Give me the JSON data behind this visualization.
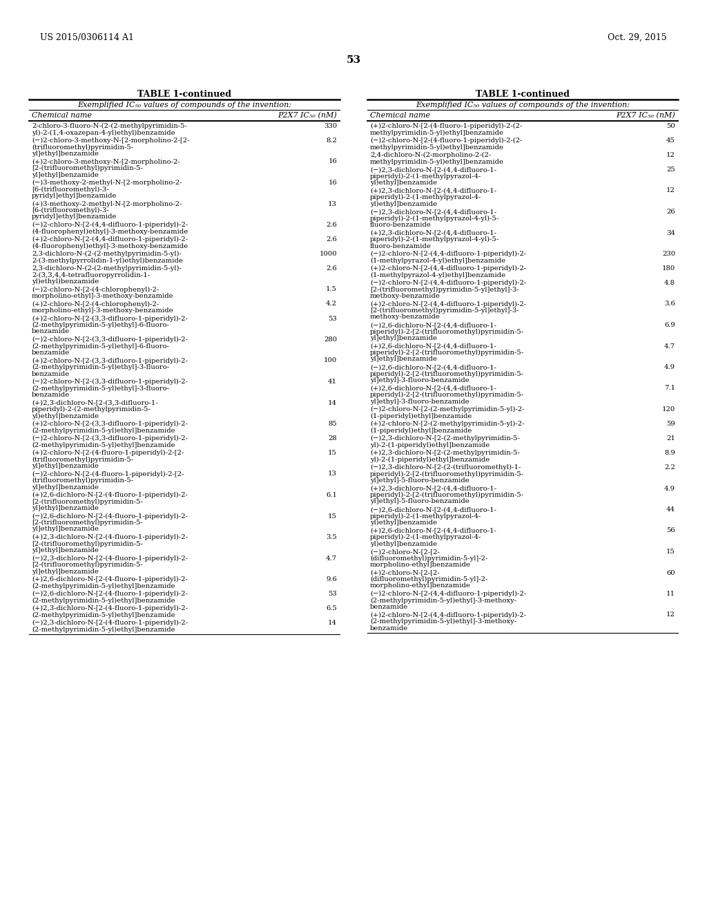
{
  "header_left": "US 2015/0306114 A1",
  "header_right": "Oct. 29, 2015",
  "page_number": "53",
  "table_title": "TABLE 1-continued",
  "background_color": "#ffffff",
  "left_table": [
    [
      "2-chloro-3-fluoro-N-(2-(2-methylpyrimidin-5-\nyl)-2-(1,4-oxazepan-4-yl)ethyl)benzamide",
      "330"
    ],
    [
      "(−)2-chloro-3-methoxy-N-[2-morpholino-2-[2-\n(trifluoromethyl)pyrimidin-5-\nyl]ethyl]benzamide",
      "8.2"
    ],
    [
      "(+)2-chloro-3-methoxy-N-[2-morpholino-2-\n[2-(trifluoromethyl)pyrimidin-5-\nyl]ethyl]benzamide",
      "16"
    ],
    [
      "(−)3-methoxy-2-methyl-N-[2-morpholino-2-\n[6-(trifluoromethyl)-3-\npyridyl]ethyl]benzamide",
      "16"
    ],
    [
      "(+)3-methoxy-2-methyl-N-[2-morpholino-2-\n[6-(trifluoromethyl)-3-\npyridyl]ethyl]benzamide",
      "13"
    ],
    [
      "(−)2-chloro-N-[2-(4,4-difluoro-1-piperidyl)-2-\n(4-fluorophenyl)ethyl]-3-methoxy-benzamide",
      "2.6"
    ],
    [
      "(+)2-chloro-N-[2-(4,4-difluoro-1-piperidyl)-2-\n(4-fluorophenyl)ethyl]-3-methoxy-benzamide",
      "2.6"
    ],
    [
      "2,3-dichloro-N-(2-(2-methylpyrimidin-5-yl)-\n2-(3-methylpyrrolidin-1-yl)ethyl)benzamide",
      "1000"
    ],
    [
      "2,3-dichloro-N-(2-(2-methylpyrimidin-5-yl)-\n2-(3,3,4,4-tetrafluoropyrrolidin-1-\nyl)ethyl)benzamide",
      "2.6"
    ],
    [
      "(−)2-chloro-N-[2-(4-chlorophenyl)-2-\nmorpholino-ethyl]-3-methoxy-benzamide",
      "1.5"
    ],
    [
      "(+)2-chloro-N-[2-(4-chlorophenyl)-2-\nmorpholino-ethyl]-3-methoxy-benzamide",
      "4.2"
    ],
    [
      "(+)2-chloro-N-[2-(3,3-difluoro-1-piperidyl)-2-\n(2-methylpyrimidin-5-yl)ethyl]-6-fluoro-\nbenzamide",
      "53"
    ],
    [
      "(−)2-chloro-N-[2-(3,3-difluoro-1-piperidyl)-2-\n(2-methylpyrimidin-5-yl)ethyl]-6-fluoro-\nbenzamide",
      "280"
    ],
    [
      "(+)2-chloro-N-[2-(3,3-difluoro-1-piperidyl)-2-\n(2-methylpyrimidin-5-yl)ethyl]-3-fluoro-\nbenzamide",
      "100"
    ],
    [
      "(−)2-chloro-N-[2-(3,3-difluoro-1-piperidyl)-2-\n(2-methylpyrimidin-5-yl)ethyl]-3-fluoro-\nbenzamide",
      "41"
    ],
    [
      "(+)2,3-dichloro-N-[2-(3,3-difluoro-1-\npiperidyl)-2-(2-methylpyrimidin-5-\nyl)ethyl]benzamide",
      "14"
    ],
    [
      "(+)2-chloro-N-[2-(3,3-difluoro-1-piperidyl)-2-\n(2-methylpyrimidin-5-yl)ethyl]benzamide",
      "85"
    ],
    [
      "(−)2-chloro-N-[2-(3,3-difluoro-1-piperidyl)-2-\n(2-methylpyrimidin-5-yl)ethyl]benzamide",
      "28"
    ],
    [
      "(+)2-chloro-N-[2-(4-fluoro-1-piperidyl)-2-[2-\n(trifluoromethyl)pyrimidin-5-\nyl]ethyl]benzamide",
      "15"
    ],
    [
      "(−)2-chloro-N-[2-(4-fluoro-1-piperidyl)-2-[2-\n(trifluoromethyl)pyrimidin-5-\nyl]ethyl]benzamide",
      "13"
    ],
    [
      "(+)2,6-dichloro-N-[2-(4-fluoro-1-piperidyl)-2-\n[2-(trifluoromethyl)pyrimidin-5-\nyl]ethyl]benzamide",
      "6.1"
    ],
    [
      "(−)2,6-dichloro-N-[2-(4-fluoro-1-piperidyl)-2-\n[2-(trifluoromethyl)pyrimidin-5-\nyl]ethyl]benzamide",
      "15"
    ],
    [
      "(+)2,3-dichloro-N-[2-(4-fluoro-1-piperidyl)-2-\n[2-(trifluoromethyl)pyrimidin-5-\nyl]ethyl]benzamide",
      "3.5"
    ],
    [
      "(−)2,3-dichloro-N-[2-(4-fluoro-1-piperidyl)-2-\n[2-(trifluoromethyl)pyrimidin-5-\nyl]ethyl]benzamide",
      "4.7"
    ],
    [
      "(+)2,6-dichloro-N-[2-(4-fluoro-1-piperidyl)-2-\n(2-methylpyrimidin-5-yl)ethyl]benzamide",
      "9.6"
    ],
    [
      "(−)2,6-dichloro-N-[2-(4-fluoro-1-piperidyl)-2-\n(2-methylpyrimidin-5-yl)ethyl]benzamide",
      "53"
    ],
    [
      "(+)2,3-dichloro-N-[2-(4-fluoro-1-piperidyl)-2-\n(2-methylpyrimidin-5-yl)ethyl]benzamide",
      "6.5"
    ],
    [
      "(−)2,3-dichloro-N-[2-(4-fluoro-1-piperidyl)-2-\n(2-methylpyrimidin-5-yl)ethyl]benzamide",
      "14"
    ]
  ],
  "right_table": [
    [
      "(+)2-chloro-N-[2-(4-fluoro-1-piperidyl)-2-(2-\nmethylpyrimidin-5-yl)ethyl]benzamide",
      "50"
    ],
    [
      "(−)2-chloro-N-[2-(4-fluoro-1-piperidyl)-2-(2-\nmethylpyrimidin-5-yl)ethyl]benzamide",
      "45"
    ],
    [
      "2,4-dichloro-N-(2-morpholino-2-(2-\nmethylpyrimidin-5-yl)ethyl]benzamide",
      "12"
    ],
    [
      "(−)2,3-dichloro-N-[2-(4,4-difluoro-1-\npiperidyl)-2-(1-methylpyrazol-4-\nyl)ethyl]benzamide",
      "25"
    ],
    [
      "(+)2,3-dichloro-N-[2-(4,4-difluoro-1-\npiperidyl)-2-(1-methylpyrazol-4-\nyl)ethyl]benzamide",
      "12"
    ],
    [
      "(−)2,3-dichloro-N-[2-(4,4-difluoro-1-\npiperidyl)-2-(1-methylpyrazol-4-yl)-5-\nfluoro-benzamide",
      "26"
    ],
    [
      "(+)2,3-dichloro-N-[2-(4,4-difluoro-1-\npiperidyl)-2-(1-methylpyrazol-4-yl)-5-\nfluoro-benzamide",
      "34"
    ],
    [
      "(−)2-chloro-N-[2-(4,4-difluoro-1-piperidyl)-2-\n(1-methylpyrazol-4-yl)ethyl]benzamide",
      "230"
    ],
    [
      "(+)2-chloro-N-[2-(4,4-difluoro-1-piperidyl)-2-\n(1-methylpyrazol-4-yl)ethyl]benzamide",
      "180"
    ],
    [
      "(−)2-chloro-N-[2-(4,4-difluoro-1-piperidyl)-2-\n[2-(trifluoromethyl)pyrimidin-5-yl]ethyl]-3-\nmethoxy-benzamide",
      "4.8"
    ],
    [
      "(+)2-chloro-N-[2-(4,4-difluoro-1-piperidyl)-2-\n[2-(trifluoromethyl)pyrimidin-5-yl]ethyl]-3-\nmethoxy-benzamide",
      "3.6"
    ],
    [
      "(−)2,6-dichloro-N-[2-(4,4-difluoro-1-\npiperidyl)-2-[2-(trifluoromethyl)pyrimidin-5-\nyl]ethyl]benzamide",
      "6.9"
    ],
    [
      "(+)2,6-dichloro-N-[2-(4,4-difluoro-1-\npiperidyl)-2-[2-(trifluoromethyl)pyrimidin-5-\nyl]ethyl]benzamide",
      "4.7"
    ],
    [
      "(−)2,6-dichloro-N-[2-(4,4-difluoro-1-\npiperidyl)-2-[2-(trifluoromethyl)pyrimidin-5-\nyl]ethyl]-3-fluoro-benzamide",
      "4.9"
    ],
    [
      "(+)2,6-dichloro-N-[2-(4,4-difluoro-1-\npiperidyl)-2-[2-(trifluoromethyl)pyrimidin-5-\nyl]ethyl]-3-fluoro-benzamide",
      "7.1"
    ],
    [
      "(−)2-chloro-N-[2-(2-methylpyrimidin-5-yl)-2-\n(1-piperidyl)ethyl]benzamide",
      "120"
    ],
    [
      "(+)2-chloro-N-[2-(2-methylpyrimidin-5-yl)-2-\n(1-piperidyl)ethyl]benzamide",
      "59"
    ],
    [
      "(−)2,3-dichloro-N-[2-(2-methylpyrimidin-5-\nyl)-2-(1-piperidyl)ethyl]benzamide",
      "21"
    ],
    [
      "(+)2,3-dichloro-N-[2-(2-methylpyrimidin-5-\nyl)-2-(1-piperidyl)ethyl]benzamide",
      "8.9"
    ],
    [
      "(−)2,3-dichloro-N-[2-(2-(trifluoromethyl)-1-\npiperidyl)-2-[2-(trifluoromethyl)pyrimidin-5-\nyl]ethyl]-5-fluoro-benzamide",
      "2.2"
    ],
    [
      "(+)2,3-dichloro-N-[2-(4,4-difluoro-1-\npiperidyl)-2-[2-(trifluoromethyl)pyrimidin-5-\nyl]ethyl]-5-fluoro-benzamide",
      "4.9"
    ],
    [
      "(−)2,6-dichloro-N-[2-(4,4-difluoro-1-\npiperidyl)-2-(1-methylpyrazol-4-\nyl)ethyl]benzamide",
      "44"
    ],
    [
      "(+)2,6-dichloro-N-[2-(4,4-difluoro-1-\npiperidyl)-2-(1-methylpyrazol-4-\nyl)ethyl]benzamide",
      "56"
    ],
    [
      "(−)2-chloro-N-[2-[2-\n(difluoromethyl)pyrimidin-5-yl]-2-\nmorpholino-ethyl]benzamide",
      "15"
    ],
    [
      "(+)2-chloro-N-[2-[2-\n(difluoromethyl)pyrimidin-5-yl]-2-\nmorpholino-ethyl]benzamide",
      "60"
    ],
    [
      "(−)2-chloro-N-[2-(4,4-difluoro-1-piperidyl)-2-\n(2-methylpyrimidin-5-yl)ethyl]-3-methoxy-\nbenzamide",
      "11"
    ],
    [
      "(+)2-chloro-N-[2-(4,4-difluoro-1-piperidyl)-2-\n(2-methylpyrimidin-5-yl)ethyl]-3-methoxy-\nbenzamide",
      "12"
    ]
  ]
}
